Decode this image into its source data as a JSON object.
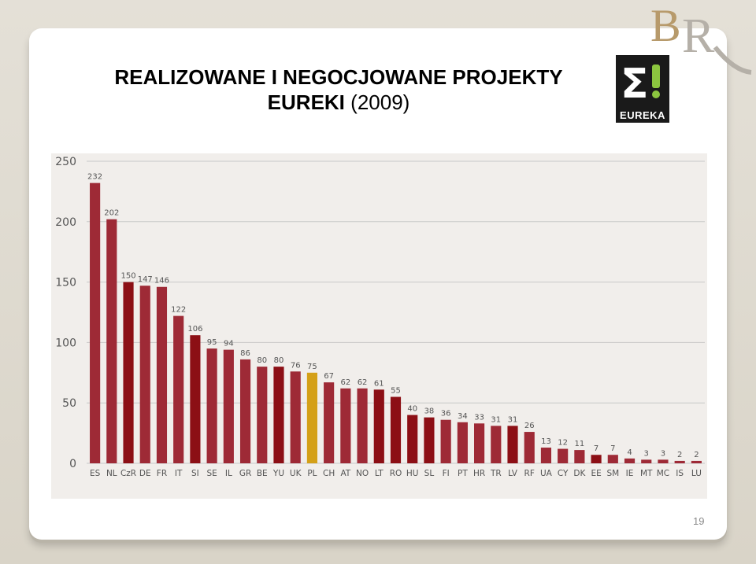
{
  "slide": {
    "title_line1": "REALIZOWANE I NEGOCJOWANE PROJEKTY",
    "title_line2_bold": "EUREKI",
    "title_line2_light": "(2009)",
    "page_number": "19"
  },
  "logos": {
    "eureka_text": "EUREKA",
    "br_text": "BR"
  },
  "colors": {
    "bar_default": "#9e2a36",
    "bar_dark": "#8c0f15",
    "bar_highlight": "#d4a017",
    "grid": "#c8c8c8",
    "axis_text": "#555555"
  },
  "chart_data": {
    "type": "bar",
    "title": "",
    "xlabel": "",
    "ylabel": "",
    "ylim": [
      0,
      250
    ],
    "yticks": [
      0,
      50,
      100,
      150,
      200,
      250
    ],
    "grid": true,
    "categories": [
      "ES",
      "NL",
      "CzR",
      "DE",
      "FR",
      "IT",
      "SI",
      "SE",
      "IL",
      "GR",
      "BE",
      "YU",
      "UK",
      "PL",
      "CH",
      "AT",
      "NO",
      "LT",
      "RO",
      "HU",
      "SL",
      "FI",
      "PT",
      "HR",
      "TR",
      "LV",
      "RF",
      "UA",
      "CY",
      "DK",
      "EE",
      "SM",
      "IE",
      "MT",
      "MC",
      "IS",
      "LU"
    ],
    "values": [
      232,
      202,
      150,
      147,
      146,
      122,
      106,
      95,
      94,
      86,
      80,
      80,
      76,
      75,
      67,
      62,
      62,
      61,
      55,
      40,
      38,
      36,
      34,
      33,
      31,
      31,
      26,
      13,
      12,
      11,
      7,
      7,
      4,
      3,
      3,
      2,
      2
    ],
    "bar_colors": [
      "default",
      "default",
      "dark",
      "default",
      "default",
      "default",
      "dark",
      "default",
      "default",
      "default",
      "default",
      "dark",
      "default",
      "highlight",
      "default",
      "default",
      "default",
      "dark",
      "dark",
      "dark",
      "dark",
      "default",
      "default",
      "default",
      "default",
      "dark",
      "default",
      "default",
      "default",
      "default",
      "dark",
      "default",
      "default",
      "default",
      "default",
      "default",
      "default"
    ]
  }
}
